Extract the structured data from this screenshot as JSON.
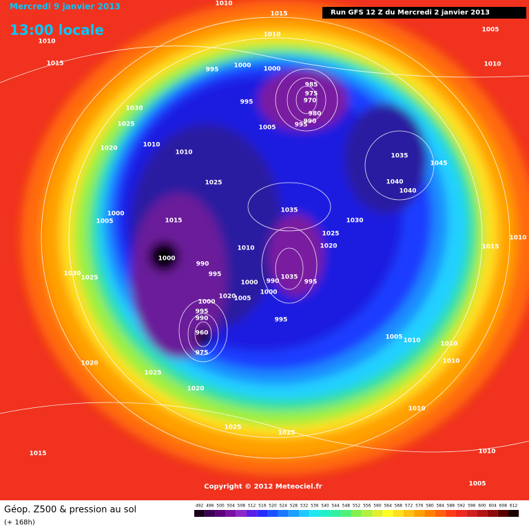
{
  "header": {
    "title": "Mercredi 9 janvier 2013",
    "time": "13:00 locale",
    "run": "Run GFS 12 Z du Mercredi 2 janvier 2013"
  },
  "isobars": [
    1010,
    1015,
    1010,
    1010,
    1015,
    1005,
    1010,
    995,
    1000,
    1000,
    985,
    975,
    970,
    980,
    990,
    995,
    995,
    1005,
    1030,
    1025,
    1020,
    1010,
    1010,
    1035,
    1045,
    1040,
    1040,
    1025,
    1035,
    1030,
    1025,
    1020,
    1000,
    1005,
    1015,
    1010,
    1000,
    990,
    995,
    1030,
    1025,
    1000,
    1000,
    990,
    1035,
    995,
    1020,
    1005,
    1000,
    995,
    990,
    960,
    975,
    995,
    1005,
    1010,
    1010,
    1010,
    1020,
    1025,
    1020,
    1010,
    1025,
    1025,
    1015,
    1010,
    1005,
    1015,
    1010
  ],
  "footer": {
    "copyright": "Copyright © 2012 Meteociel.fr",
    "product": "Géop. Z500 & pression au sol",
    "lead": "(+ 168h)"
  },
  "legend": {
    "values": [
      492,
      496,
      500,
      504,
      508,
      512,
      516,
      520,
      524,
      528,
      532,
      536,
      540,
      544,
      548,
      552,
      556,
      560,
      564,
      568,
      572,
      576,
      580,
      584,
      588,
      592,
      596,
      600,
      604,
      608,
      612
    ]
  }
}
